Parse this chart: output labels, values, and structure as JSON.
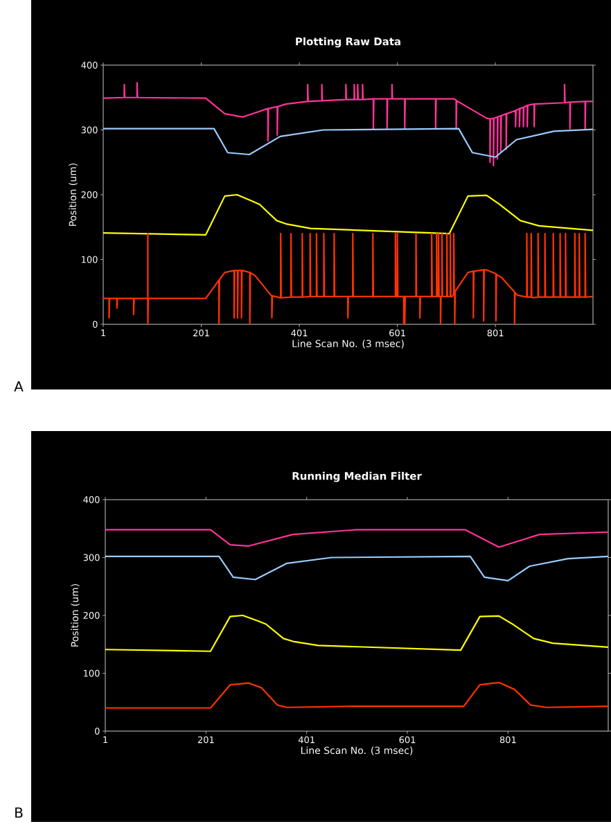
{
  "chart_data": [
    {
      "type": "line",
      "title": "Plotting Raw Data",
      "xlabel": "Line Scan No. (3 msec)",
      "ylabel": "Position (um)",
      "annotations": [
        "A"
      ],
      "xlim": [
        1,
        1000
      ],
      "xticks": [
        1,
        201,
        401,
        601,
        801
      ],
      "ylim": [
        0,
        400
      ],
      "yticks": [
        0,
        100,
        200,
        300,
        400
      ],
      "series": [
        {
          "color": "#ff3399",
          "x": [
            1,
            44,
            44,
            45,
            70,
            70,
            71,
            210,
            249,
            286,
            337,
            337,
            338,
            356,
            356,
            357,
            374,
            418,
            418,
            419,
            447,
            447,
            448,
            496,
            496,
            497,
            513,
            513,
            514,
            520,
            520,
            521,
            530,
            530,
            531,
            552,
            552,
            553,
            580,
            580,
            581,
            590,
            590,
            591,
            616,
            616,
            617,
            679,
            679,
            680,
            716,
            721,
            721,
            722,
            783,
            790,
            790,
            791,
            797,
            797,
            798,
            805,
            805,
            806,
            812,
            812,
            813,
            823,
            823,
            824,
            842,
            842,
            843,
            850,
            850,
            851,
            858,
            858,
            859,
            866,
            866,
            867,
            880,
            880,
            881,
            942,
            942,
            943,
            953,
            953,
            954,
            984,
            984,
            985,
            1000
          ],
          "values": [
            349,
            350,
            370,
            350,
            350,
            373,
            350,
            349,
            325,
            320,
            333,
            283,
            333,
            336,
            292,
            336,
            340,
            344,
            370,
            344,
            345,
            370,
            345,
            347,
            370,
            347,
            347,
            370,
            347,
            347,
            370,
            347,
            347,
            370,
            347,
            348,
            302,
            348,
            348,
            302,
            348,
            348,
            370,
            348,
            348,
            302,
            348,
            348,
            302,
            348,
            348,
            346,
            302,
            345,
            318,
            317,
            250,
            317,
            318,
            245,
            318,
            320,
            255,
            320,
            322,
            265,
            322,
            325,
            270,
            325,
            330,
            305,
            330,
            333,
            305,
            333,
            335,
            305,
            335,
            338,
            305,
            338,
            340,
            305,
            340,
            342,
            370,
            342,
            343,
            302,
            343,
            344,
            302,
            344,
            344
          ]
        },
        {
          "color": "#99ccff",
          "x": [
            1,
            227,
            255,
            299,
            362,
            450,
            726,
            754,
            801,
            844,
            920,
            1000
          ],
          "values": [
            302,
            302,
            265,
            262,
            290,
            300,
            302,
            265,
            258,
            285,
            298,
            301
          ]
        },
        {
          "color": "#ffff00",
          "x": [
            1,
            210,
            249,
            274,
            305,
            320,
            355,
            374,
            424,
            707,
            745,
            783,
            808,
            852,
            890,
            1000
          ],
          "values": [
            141,
            138,
            198,
            200,
            190,
            185,
            160,
            155,
            148,
            140,
            198,
            199,
            186,
            160,
            152,
            145
          ]
        },
        {
          "color": "#ff3300",
          "x": [
            1,
            13,
            13,
            14,
            29,
            29,
            30,
            63,
            63,
            64,
            92,
            92,
            92,
            93,
            210,
            237,
            237,
            238,
            249,
            268,
            268,
            269,
            275,
            275,
            276,
            283,
            283,
            284,
            286,
            300,
            300,
            301,
            311,
            343,
            345,
            345,
            346,
            362,
            363,
            363,
            364,
            384,
            384,
            385,
            407,
            407,
            408,
            423,
            423,
            424,
            436,
            436,
            437,
            451,
            451,
            452,
            472,
            472,
            473,
            500,
            500,
            501,
            510,
            510,
            511,
            551,
            551,
            552,
            597,
            597,
            598,
            601,
            601,
            602,
            614,
            614,
            615,
            616,
            616,
            617,
            639,
            639,
            640,
            647,
            647,
            648,
            671,
            671,
            672,
            681,
            681,
            682,
            685,
            685,
            686,
            689,
            689,
            690,
            692,
            692,
            693,
            702,
            702,
            703,
            709,
            709,
            710,
            713,
            716,
            716,
            717,
            718,
            718,
            719,
            745,
            756,
            756,
            757,
            777,
            777,
            778,
            783,
            802,
            802,
            803,
            814,
            840,
            840,
            841,
            846,
            865,
            865,
            866,
            874,
            874,
            875,
            877,
            888,
            888,
            889,
            902,
            902,
            903,
            919,
            919,
            920,
            933,
            933,
            934,
            944,
            944,
            945,
            963,
            963,
            964,
            972,
            972,
            973,
            984,
            984,
            985,
            1000
          ],
          "values": [
            40,
            40,
            10,
            40,
            40,
            25,
            40,
            40,
            15,
            40,
            40,
            140,
            0,
            40,
            40,
            68,
            0,
            69,
            80,
            83,
            10,
            83,
            83,
            10,
            83,
            83,
            10,
            83,
            83,
            80,
            0,
            80,
            75,
            45,
            44,
            10,
            44,
            41,
            41,
            140,
            41,
            42,
            140,
            42,
            42,
            140,
            42,
            43,
            140,
            43,
            43,
            140,
            43,
            43,
            140,
            43,
            43,
            140,
            43,
            43,
            10,
            43,
            43,
            140,
            43,
            43,
            140,
            43,
            43,
            140,
            43,
            43,
            140,
            43,
            43,
            0,
            43,
            43,
            0,
            43,
            43,
            140,
            43,
            43,
            10,
            43,
            43,
            140,
            43,
            43,
            140,
            43,
            43,
            140,
            43,
            43,
            0,
            43,
            43,
            140,
            43,
            43,
            140,
            43,
            43,
            140,
            43,
            43,
            47,
            140,
            48,
            50,
            0,
            51,
            80,
            82,
            10,
            82,
            84,
            5,
            84,
            84,
            78,
            5,
            77,
            72,
            50,
            0,
            49,
            45,
            42,
            140,
            42,
            42,
            140,
            42,
            41,
            42,
            140,
            42,
            42,
            140,
            42,
            42,
            140,
            42,
            42,
            140,
            42,
            42,
            140,
            42,
            42,
            140,
            42,
            42,
            140,
            42,
            42,
            140,
            42,
            43
          ]
        }
      ]
    },
    {
      "type": "line",
      "title": "Running Median Filter",
      "xlabel": "Line Scan No. (3 msec)",
      "ylabel": "Position (um)",
      "annotations": [
        "B"
      ],
      "xlim": [
        1,
        1000
      ],
      "xticks": [
        1,
        201,
        401,
        601,
        801
      ],
      "ylim": [
        0,
        400
      ],
      "yticks": [
        0,
        100,
        200,
        300,
        400
      ],
      "series": [
        {
          "color": "#ff3399",
          "x": [
            1,
            210,
            249,
            286,
            374,
            500,
            716,
            783,
            864,
            1000
          ],
          "values": [
            348,
            348,
            322,
            320,
            340,
            348,
            348,
            318,
            340,
            344
          ]
        },
        {
          "color": "#99ccff",
          "x": [
            1,
            227,
            255,
            299,
            362,
            450,
            726,
            754,
            801,
            844,
            920,
            1000
          ],
          "values": [
            302,
            302,
            266,
            262,
            290,
            300,
            302,
            266,
            260,
            285,
            298,
            302
          ]
        },
        {
          "color": "#ffff00",
          "x": [
            1,
            210,
            249,
            274,
            305,
            320,
            355,
            374,
            424,
            707,
            745,
            783,
            808,
            852,
            890,
            1000
          ],
          "values": [
            141,
            138,
            198,
            200,
            190,
            185,
            160,
            155,
            148,
            140,
            198,
            199,
            186,
            160,
            152,
            145
          ]
        },
        {
          "color": "#ff3300",
          "x": [
            1,
            210,
            249,
            286,
            311,
            343,
            362,
            500,
            713,
            745,
            783,
            814,
            846,
            877,
            1000
          ],
          "values": [
            40,
            40,
            80,
            83,
            75,
            45,
            41,
            43,
            43,
            80,
            84,
            72,
            45,
            41,
            43
          ]
        }
      ]
    }
  ]
}
